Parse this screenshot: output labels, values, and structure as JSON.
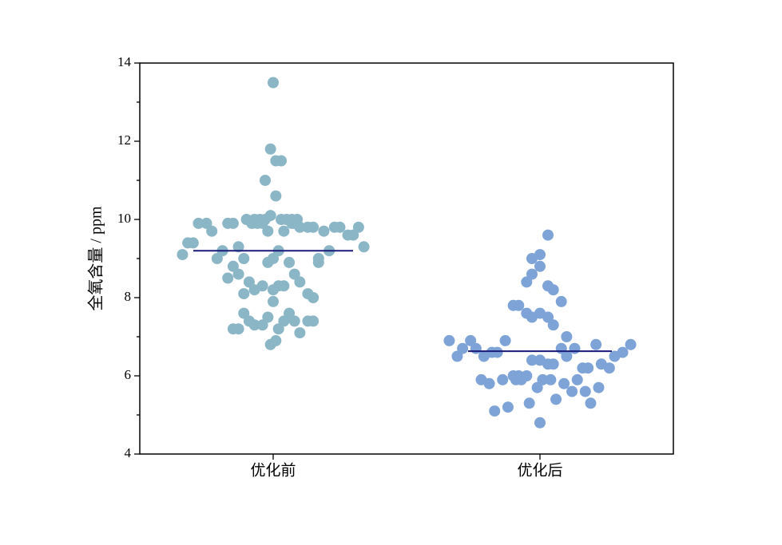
{
  "chart_data": {
    "type": "scatter",
    "ylabel": "全氧含量 / ppm",
    "xlim": [
      0.5,
      2.5
    ],
    "xticks": [
      {
        "value": 1,
        "label": "优化前"
      },
      {
        "value": 2,
        "label": "优化后"
      }
    ],
    "ylim": [
      4,
      14
    ],
    "yticks": [
      4,
      6,
      8,
      10,
      12,
      14
    ],
    "mean_color": "#1a1a7a",
    "series": [
      {
        "color": "#8ab6c6",
        "mean": 9.2,
        "x": [
          1.0,
          0.99,
          1.01,
          1.03,
          0.97,
          1.01,
          0.9,
          0.93,
          0.95,
          0.97,
          0.99,
          1.03,
          1.05,
          1.07,
          1.09,
          0.72,
          0.75,
          0.83,
          0.85,
          0.92,
          0.94,
          0.96,
          1.07,
          1.08,
          0.77,
          0.98,
          1.04,
          1.19,
          1.1,
          1.13,
          1.15,
          1.23,
          1.25,
          1.32,
          1.28,
          1.3,
          0.68,
          0.7,
          1.34,
          0.87,
          0.66,
          0.81,
          1.02,
          1.21,
          0.79,
          0.89,
          1.0,
          1.17,
          0.98,
          1.06,
          1.17,
          0.85,
          0.87,
          1.08,
          0.83,
          0.91,
          1.1,
          0.96,
          1.02,
          1.04,
          0.93,
          1.0,
          0.89,
          1.13,
          1.15,
          1.0,
          0.89,
          1.06,
          0.98,
          0.91,
          1.04,
          1.08,
          1.13,
          1.15,
          0.93,
          0.96,
          0.85,
          0.87,
          1.02,
          1.1,
          1.01,
          0.99
        ],
        "values": [
          13.5,
          11.8,
          11.5,
          11.5,
          11.0,
          10.6,
          10.0,
          10.0,
          10.0,
          10.0,
          10.1,
          10.0,
          10.0,
          10.0,
          10.0,
          9.9,
          9.9,
          9.9,
          9.9,
          9.9,
          9.9,
          9.9,
          9.9,
          9.9,
          9.7,
          9.7,
          9.7,
          9.7,
          9.8,
          9.8,
          9.8,
          9.8,
          9.8,
          9.8,
          9.6,
          9.6,
          9.4,
          9.4,
          9.3,
          9.3,
          9.1,
          9.2,
          9.2,
          9.2,
          9.0,
          9.0,
          9.0,
          9.0,
          8.9,
          8.9,
          8.9,
          8.8,
          8.6,
          8.6,
          8.5,
          8.4,
          8.4,
          8.3,
          8.3,
          8.3,
          8.2,
          8.2,
          8.1,
          8.1,
          8.0,
          7.9,
          7.6,
          7.6,
          7.5,
          7.4,
          7.4,
          7.4,
          7.4,
          7.4,
          7.3,
          7.3,
          7.2,
          7.2,
          7.2,
          7.1,
          6.9,
          6.8
        ]
      },
      {
        "color": "#7ea3d6",
        "mean": 6.63,
        "x": [
          2.03,
          2.0,
          1.97,
          2.0,
          1.97,
          1.95,
          2.03,
          2.05,
          2.08,
          1.9,
          1.92,
          1.95,
          2.0,
          1.97,
          2.03,
          2.05,
          2.1,
          1.66,
          1.74,
          1.87,
          1.71,
          1.76,
          2.13,
          2.08,
          2.21,
          2.34,
          1.82,
          1.84,
          2.31,
          1.69,
          1.79,
          2.1,
          2.28,
          1.97,
          2.0,
          2.03,
          2.05,
          2.23,
          2.16,
          2.18,
          2.26,
          1.9,
          1.92,
          1.95,
          1.78,
          1.86,
          1.91,
          1.93,
          2.01,
          2.04,
          2.14,
          1.81,
          2.09,
          1.99,
          2.22,
          2.12,
          2.17,
          2.06,
          1.96,
          2.19,
          1.88,
          1.83,
          2.0
        ],
        "values": [
          9.6,
          9.1,
          9.0,
          8.8,
          8.6,
          8.4,
          8.3,
          8.2,
          7.9,
          7.8,
          7.8,
          7.6,
          7.6,
          7.5,
          7.5,
          7.3,
          7.0,
          6.9,
          6.9,
          6.9,
          6.7,
          6.7,
          6.7,
          6.7,
          6.8,
          6.8,
          6.6,
          6.6,
          6.6,
          6.5,
          6.5,
          6.5,
          6.5,
          6.4,
          6.4,
          6.3,
          6.3,
          6.3,
          6.2,
          6.2,
          6.2,
          6.0,
          6.0,
          6.0,
          5.9,
          5.9,
          5.9,
          5.9,
          5.9,
          5.9,
          5.9,
          5.8,
          5.8,
          5.7,
          5.7,
          5.6,
          5.6,
          5.4,
          5.3,
          5.3,
          5.2,
          5.1,
          4.8
        ]
      }
    ]
  }
}
